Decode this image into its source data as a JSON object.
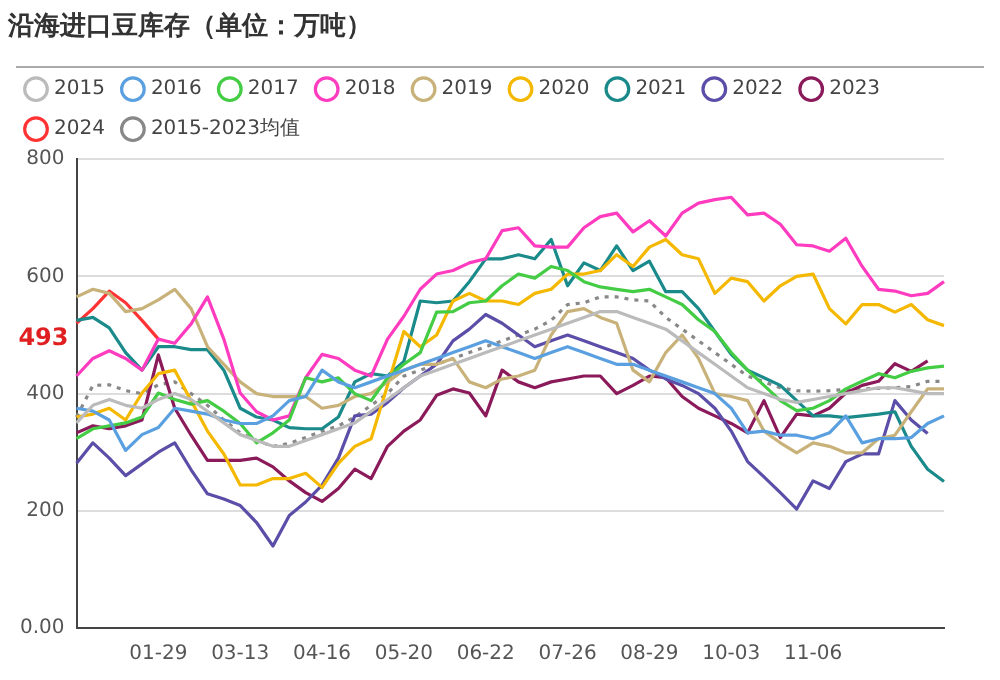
{
  "chart_data": {
    "type": "line",
    "title": "沿海进口豆库存（单位：万吨）",
    "legend": "top",
    "grid": "y",
    "ylim": [
      0,
      800
    ],
    "yticks": [
      {
        "value": 0,
        "label": "0.00"
      },
      200,
      400,
      600,
      800
    ],
    "categories": [
      null,
      null,
      null,
      null,
      null,
      "01-29",
      null,
      null,
      null,
      null,
      "03-13",
      null,
      null,
      null,
      null,
      "04-16",
      null,
      null,
      null,
      null,
      "05-20",
      null,
      null,
      null,
      null,
      "06-22",
      null,
      null,
      null,
      null,
      "07-26",
      null,
      null,
      null,
      null,
      "08-29",
      null,
      null,
      null,
      null,
      "10-03",
      null,
      null,
      null,
      null,
      "11-06",
      null,
      null,
      null,
      null,
      null,
      null,
      null,
      null
    ],
    "annotations": [
      {
        "text": "493",
        "y": 493
      }
    ],
    "series": [
      {
        "name": "2015",
        "color": "#bbbbbb",
        "values": [
          350,
          380,
          390,
          380,
          375,
          390,
          400,
          390,
          370,
          350,
          330,
          320,
          310,
          310,
          320,
          330,
          340,
          350,
          370,
          390,
          410,
          430,
          440,
          450,
          460,
          470,
          480,
          490,
          500,
          510,
          520,
          530,
          540,
          540,
          530,
          520,
          510,
          490,
          470,
          450,
          430,
          410,
          400,
          390,
          385,
          390,
          395,
          400,
          405,
          410,
          410,
          405,
          400,
          400
        ]
      },
      {
        "name": "2016",
        "color": "#5aa0e0",
        "values": [
          375,
          370,
          355,
          303,
          330,
          342,
          375,
          370,
          365,
          355,
          349,
          349,
          362,
          388,
          395,
          440,
          420,
          410,
          420,
          430,
          440,
          450,
          460,
          470,
          480,
          490,
          480,
          470,
          460,
          470,
          480,
          470,
          460,
          450,
          450,
          440,
          430,
          420,
          410,
          400,
          375,
          333,
          336,
          329,
          329,
          323,
          333,
          362,
          316,
          323,
          323,
          325,
          349,
          362
        ]
      },
      {
        "name": "2017",
        "color": "#44cc44",
        "values": [
          323,
          340,
          345,
          350,
          360,
          401,
          390,
          382,
          388,
          370,
          349,
          316,
          333,
          355,
          427,
          420,
          427,
          400,
          388,
          427,
          450,
          470,
          539,
          540,
          555,
          558,
          584,
          604,
          597,
          617,
          610,
          591,
          582,
          578,
          574,
          578,
          565,
          552,
          526,
          506,
          470,
          440,
          414,
          388,
          371,
          375,
          388,
          408,
          421,
          434,
          427,
          438,
          444,
          447
        ]
      },
      {
        "name": "2018",
        "color": "#ff3bbf",
        "values": [
          430,
          460,
          473,
          460,
          440,
          493,
          486,
          519,
          565,
          493,
          401,
          369,
          355,
          362,
          427,
          467,
          460,
          440,
          430,
          493,
          532,
          578,
          604,
          610,
          623,
          630,
          678,
          683,
          652,
          650,
          650,
          683,
          702,
          708,
          676,
          695,
          669,
          708,
          725,
          731,
          735,
          705,
          708,
          689,
          654,
          652,
          643,
          665,
          617,
          578,
          575,
          567,
          571,
          591
        ]
      },
      {
        "name": "2019",
        "color": "#c8b27a",
        "values": [
          565,
          578,
          571,
          540,
          545,
          560,
          578,
          545,
          480,
          450,
          420,
          400,
          395,
          395,
          395,
          375,
          380,
          395,
          400,
          420,
          440,
          450,
          450,
          460,
          420,
          410,
          425,
          430,
          440,
          500,
          540,
          545,
          530,
          520,
          440,
          420,
          470,
          500,
          460,
          400,
          395,
          388,
          336,
          316,
          299,
          316,
          310,
          299,
          299,
          323,
          329,
          369,
          408,
          408
        ]
      },
      {
        "name": "2020",
        "color": "#f5b800",
        "values": [
          360,
          365,
          375,
          355,
          401,
          434,
          440,
          388,
          336,
          297,
          244,
          244,
          255,
          255,
          264,
          240,
          281,
          310,
          323,
          414,
          506,
          480,
          500,
          558,
          571,
          558,
          558,
          552,
          571,
          578,
          604,
          604,
          610,
          637,
          617,
          650,
          663,
          637,
          630,
          571,
          597,
          591,
          558,
          584,
          600,
          604,
          545,
          519,
          552,
          552,
          539,
          552,
          526,
          516
        ]
      },
      {
        "name": "2021",
        "color": "#1a8a8a",
        "values": [
          525,
          530,
          512,
          470,
          440,
          480,
          480,
          475,
          475,
          440,
          375,
          360,
          355,
          342,
          340,
          340,
          360,
          420,
          434,
          430,
          455,
          558,
          555,
          558,
          591,
          630,
          630,
          637,
          630,
          663,
          584,
          623,
          610,
          652,
          610,
          626,
          574,
          574,
          545,
          506,
          467,
          440,
          427,
          414,
          388,
          362,
          362,
          359,
          362,
          365,
          369,
          310,
          271,
          250
        ]
      },
      {
        "name": "2022",
        "color": "#5b4ea8",
        "values": [
          281,
          316,
          290,
          260,
          280,
          300,
          316,
          270,
          229,
          220,
          209,
          180,
          140,
          192,
          215,
          244,
          290,
          362,
          365,
          385,
          410,
          430,
          450,
          490,
          510,
          535,
          520,
          500,
          480,
          490,
          500,
          490,
          480,
          470,
          460,
          440,
          425,
          414,
          400,
          375,
          336,
          284,
          258,
          231,
          203,
          251,
          238,
          284,
          297,
          297,
          388,
          355,
          332,
          null
        ]
      },
      {
        "name": "2023",
        "color": "#8b1a5a",
        "values": [
          333,
          345,
          340,
          345,
          355,
          466,
          375,
          329,
          286,
          286,
          286,
          290,
          275,
          251,
          231,
          216,
          238,
          271,
          255,
          310,
          336,
          355,
          397,
          408,
          401,
          362,
          440,
          420,
          410,
          420,
          425,
          430,
          430,
          400,
          414,
          430,
          427,
          395,
          375,
          362,
          349,
          333,
          388,
          325,
          365,
          362,
          375,
          401,
          414,
          421,
          451,
          438,
          456,
          null
        ]
      },
      {
        "name": "2024",
        "color": "#ff3333",
        "values": [
          520,
          545,
          575,
          555,
          525,
          493,
          null,
          null,
          null,
          null,
          null,
          null,
          null,
          null,
          null,
          null,
          null,
          null,
          null,
          null,
          null,
          null,
          null,
          null,
          null,
          null,
          null,
          null,
          null,
          null,
          null,
          null,
          null,
          null,
          null,
          null,
          null,
          null,
          null,
          null,
          null,
          null,
          null,
          null,
          null,
          null,
          null,
          null,
          null,
          null,
          null,
          null,
          null,
          null
        ]
      },
      {
        "name": "2015-2023均值",
        "color": "#888888",
        "line_style": "dotted",
        "values": [
          360,
          414,
          415,
          405,
          400,
          415,
          420,
          400,
          380,
          355,
          333,
          320,
          310,
          315,
          325,
          336,
          345,
          360,
          380,
          400,
          430,
          440,
          450,
          460,
          470,
          480,
          490,
          500,
          510,
          525,
          552,
          555,
          565,
          565,
          560,
          558,
          530,
          510,
          490,
          470,
          450,
          430,
          420,
          410,
          405,
          404,
          405,
          407,
          408,
          409,
          410,
          412,
          421,
          421
        ]
      }
    ]
  }
}
